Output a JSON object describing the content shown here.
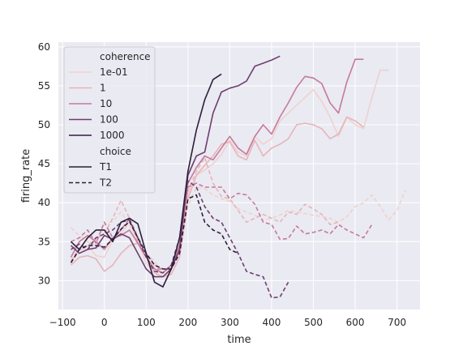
{
  "chart_data": {
    "type": "line",
    "xlabel": "time",
    "ylabel": "firing_rate",
    "xlim": [
      -110,
      755
    ],
    "ylim": [
      26.3,
      60.6
    ],
    "xticks": [
      -100,
      0,
      100,
      200,
      300,
      400,
      500,
      600,
      700
    ],
    "yticks": [
      30,
      35,
      40,
      45,
      50,
      55,
      60
    ],
    "grid": true,
    "legend_position": "top-left",
    "legend": {
      "hue_title": "coherence",
      "hue_entries": [
        {
          "label": "1e-01",
          "color": "#efd1cd"
        },
        {
          "label": "1",
          "color": "#e7b4b8"
        },
        {
          "label": "10",
          "color": "#c6799c"
        },
        {
          "label": "100",
          "color": "#6e3e6f"
        },
        {
          "label": "1000",
          "color": "#2e1e3b"
        }
      ],
      "style_title": "choice",
      "style_entries": [
        {
          "label": "T1",
          "dash": "solid"
        },
        {
          "label": "T2",
          "dash": "dashed"
        }
      ]
    },
    "series": [
      {
        "coherence": "1e-01",
        "choice": "T1",
        "color": "#efd1cd",
        "x": [
          -80,
          -60,
          -40,
          -20,
          0,
          20,
          40,
          60,
          80,
          100,
          120,
          140,
          160,
          180,
          200,
          220,
          240,
          260,
          280,
          300,
          320,
          340,
          360,
          380,
          400,
          420,
          440,
          460,
          480,
          500,
          520,
          540,
          560,
          580,
          600,
          620,
          640,
          660,
          680
        ],
        "y": [
          32.5,
          33.8,
          34.5,
          33.2,
          33.0,
          35.2,
          36.0,
          37.6,
          35.0,
          32.2,
          31.2,
          31.0,
          31.8,
          33.5,
          41.0,
          43.5,
          44.2,
          45.0,
          46.2,
          48.0,
          46.5,
          46.0,
          48.5,
          47.5,
          48.2,
          50.5,
          51.5,
          52.5,
          53.5,
          54.5,
          53.0,
          51.0,
          48.5,
          51.0,
          50.0,
          49.5,
          53.5,
          57.0,
          57.0
        ]
      },
      {
        "coherence": "1e-01",
        "choice": "T2",
        "color": "#efd1cd",
        "x": [
          -80,
          -60,
          -40,
          -20,
          0,
          20,
          40,
          60,
          80,
          100,
          120,
          140,
          160,
          180,
          200,
          220,
          240,
          260,
          280,
          300,
          320,
          340,
          360,
          380,
          400,
          420,
          440,
          460,
          480,
          500,
          520,
          540,
          560,
          580,
          600,
          620,
          640,
          660,
          680,
          700,
          720
        ],
        "y": [
          36.8,
          35.8,
          35.0,
          34.5,
          37.2,
          37.6,
          38.8,
          37.2,
          35.0,
          33.5,
          32.5,
          31.0,
          31.5,
          33.5,
          39.5,
          42.0,
          41.8,
          41.0,
          40.5,
          40.2,
          39.2,
          38.8,
          38.4,
          37.8,
          38.0,
          38.4,
          39.0,
          38.8,
          38.6,
          38.4,
          38.2,
          38.0,
          37.5,
          38.2,
          39.5,
          40.0,
          41.0,
          39.5,
          37.8,
          39.0,
          41.6
        ]
      },
      {
        "coherence": "1",
        "choice": "T1",
        "color": "#e7b4b8",
        "x": [
          -80,
          -60,
          -40,
          -20,
          0,
          20,
          40,
          60,
          80,
          100,
          120,
          140,
          160,
          180,
          200,
          220,
          240,
          260,
          280,
          300,
          320,
          340,
          360,
          380,
          400,
          420,
          440,
          460,
          480,
          500,
          520,
          540,
          560,
          580,
          600,
          620
        ],
        "y": [
          32.0,
          33.0,
          33.2,
          32.8,
          31.2,
          32.0,
          33.5,
          34.5,
          34.8,
          33.0,
          31.0,
          30.5,
          30.8,
          33.0,
          40.5,
          43.5,
          44.8,
          46.0,
          47.5,
          47.8,
          46.0,
          45.5,
          48.0,
          46.0,
          47.0,
          47.5,
          48.2,
          50.0,
          50.2,
          50.0,
          49.5,
          48.2,
          48.8,
          51.0,
          50.5,
          49.7
        ]
      },
      {
        "coherence": "1",
        "choice": "T2",
        "color": "#e7b4b8",
        "x": [
          -80,
          -60,
          -40,
          -20,
          0,
          20,
          40,
          60,
          80,
          100,
          120,
          140,
          160,
          180,
          200,
          220,
          240,
          260,
          280,
          300,
          320,
          340,
          360,
          380,
          400,
          420,
          440,
          460,
          480,
          500,
          520,
          540,
          560
        ],
        "y": [
          32.5,
          34.2,
          34.5,
          35.5,
          36.0,
          38.0,
          40.3,
          38.0,
          35.0,
          33.5,
          32.0,
          31.5,
          31.5,
          34.0,
          41.5,
          44.0,
          45.8,
          42.5,
          40.8,
          40.5,
          39.0,
          37.5,
          38.0,
          38.5,
          38.0,
          37.5,
          38.8,
          38.5,
          39.8,
          39.2,
          38.5,
          37.2,
          37.5
        ]
      },
      {
        "coherence": "10",
        "choice": "T1",
        "color": "#c6799c",
        "x": [
          -80,
          -60,
          -40,
          -20,
          0,
          20,
          40,
          60,
          80,
          100,
          120,
          140,
          160,
          180,
          200,
          220,
          240,
          260,
          280,
          300,
          320,
          340,
          360,
          380,
          400,
          420,
          440,
          460,
          480,
          500,
          520,
          540,
          560,
          580,
          600,
          620
        ],
        "y": [
          33.0,
          35.0,
          35.8,
          35.0,
          34.0,
          35.5,
          35.8,
          36.5,
          34.8,
          33.0,
          31.5,
          31.0,
          32.0,
          34.5,
          42.5,
          44.5,
          46.0,
          45.5,
          47.0,
          48.5,
          47.0,
          46.2,
          48.5,
          50.0,
          48.8,
          51.0,
          52.8,
          54.8,
          56.2,
          56.0,
          55.3,
          52.8,
          51.5,
          55.5,
          58.4,
          58.4
        ]
      },
      {
        "coherence": "10",
        "choice": "T2",
        "color": "#c6799c",
        "x": [
          -80,
          -60,
          -40,
          -20,
          0,
          20,
          40,
          60,
          80,
          100,
          120,
          140,
          160,
          180,
          200,
          220,
          240,
          260,
          280,
          300,
          320,
          340,
          360,
          380,
          400,
          420,
          440,
          460,
          480,
          500,
          520,
          540,
          560,
          580,
          600,
          620,
          640
        ],
        "y": [
          35.0,
          35.5,
          36.5,
          34.8,
          37.5,
          35.5,
          36.5,
          38.0,
          35.5,
          33.0,
          31.5,
          31.5,
          31.5,
          34.5,
          42.0,
          42.5,
          42.0,
          42.0,
          42.0,
          40.5,
          41.2,
          41.0,
          39.8,
          37.5,
          37.2,
          35.3,
          35.4,
          37.0,
          36.0,
          36.2,
          36.5,
          36.0,
          37.2,
          36.5,
          36.0,
          35.5,
          37.2
        ]
      },
      {
        "coherence": "100",
        "choice": "T1",
        "color": "#6e3e6f",
        "x": [
          -80,
          -60,
          -40,
          -20,
          0,
          20,
          40,
          60,
          80,
          100,
          120,
          140,
          160,
          180,
          200,
          220,
          240,
          260,
          280,
          300,
          320,
          340,
          360,
          380,
          400,
          420
        ],
        "y": [
          34.5,
          33.5,
          34.0,
          34.2,
          35.8,
          35.3,
          36.0,
          35.5,
          33.5,
          31.5,
          30.5,
          30.5,
          31.5,
          34.0,
          43.5,
          46.0,
          46.5,
          51.5,
          54.2,
          54.7,
          55.0,
          55.6,
          57.5,
          57.9,
          58.3,
          58.8
        ]
      },
      {
        "coherence": "100",
        "choice": "T2",
        "color": "#6e3e6f",
        "x": [
          -80,
          -60,
          -40,
          -20,
          0,
          20,
          40,
          60,
          80,
          100,
          120,
          140,
          160,
          180,
          200,
          220,
          240,
          260,
          280,
          300,
          320,
          340,
          360,
          380,
          400,
          420,
          440
        ],
        "y": [
          34.0,
          34.7,
          34.0,
          35.5,
          36.0,
          36.5,
          37.5,
          37.8,
          35.5,
          33.0,
          31.2,
          31.0,
          32.0,
          35.5,
          42.8,
          42.0,
          39.5,
          38.0,
          37.5,
          35.5,
          33.5,
          31.2,
          30.8,
          30.5,
          27.8,
          27.9,
          29.8
        ]
      },
      {
        "coherence": "1000",
        "choice": "T1",
        "color": "#2e1e3b",
        "x": [
          -80,
          -60,
          -40,
          -20,
          0,
          20,
          40,
          60,
          80,
          100,
          120,
          140,
          160,
          180,
          200,
          220,
          240,
          260,
          280
        ],
        "y": [
          35.0,
          34.0,
          35.5,
          36.5,
          36.5,
          35.0,
          37.5,
          38.0,
          37.3,
          33.5,
          29.8,
          29.2,
          31.5,
          35.5,
          44.0,
          49.3,
          53.2,
          55.8,
          56.5
        ]
      },
      {
        "coherence": "1000",
        "choice": "T2",
        "color": "#2e1e3b",
        "x": [
          -80,
          -60,
          -40,
          -20,
          0,
          20,
          40,
          60,
          80,
          100,
          120,
          140,
          160,
          180,
          200,
          220,
          240,
          260,
          280,
          300,
          320
        ],
        "y": [
          32.3,
          34.0,
          34.5,
          34.5,
          34.3,
          35.3,
          36.6,
          37.6,
          35.5,
          33.5,
          32.0,
          31.5,
          31.5,
          33.5,
          40.5,
          41.0,
          37.5,
          36.5,
          36.0,
          34.0,
          33.5
        ]
      }
    ]
  }
}
